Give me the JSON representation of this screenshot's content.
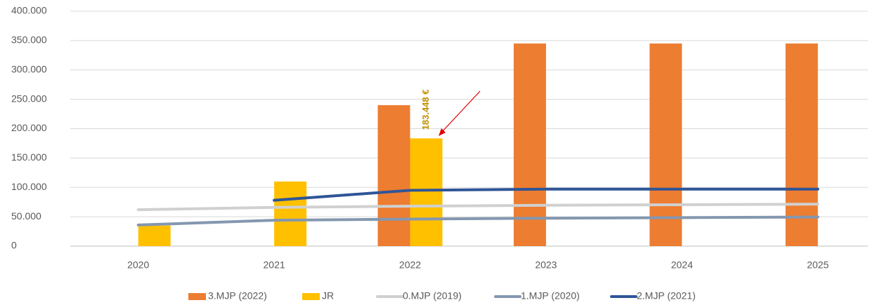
{
  "chart_data": {
    "type": "bar",
    "categories": [
      "2020",
      "2021",
      "2022",
      "2023",
      "2024",
      "2025"
    ],
    "series": [
      {
        "name": "3.MJP (2022)",
        "type": "bar",
        "color": "#ed7d31",
        "values": [
          null,
          null,
          240000,
          345000,
          345000,
          345000
        ]
      },
      {
        "name": "JR",
        "type": "bar",
        "color": "#ffc000",
        "values": [
          35000,
          110000,
          183448,
          null,
          null,
          null
        ],
        "value_labels": [
          null,
          null,
          "183.448 €",
          null,
          null,
          null
        ]
      },
      {
        "name": "0.MJP (2019)",
        "type": "line",
        "color": "#d0d0d0",
        "values": [
          62000,
          66000,
          68000,
          69500,
          70500,
          71500
        ]
      },
      {
        "name": "1.MJP (2020)",
        "type": "line",
        "color": "#8497b0",
        "values": [
          36000,
          44000,
          46000,
          47500,
          48500,
          49500
        ]
      },
      {
        "name": "2.MJP (2021)",
        "type": "line",
        "color": "#2f5597",
        "values": [
          null,
          78000,
          95000,
          97000,
          97000,
          97000
        ]
      }
    ],
    "ylim": [
      0,
      400000
    ],
    "yticks": [
      0,
      {
        "value": 50000,
        "label": "50.000"
      },
      {
        "value": 100000,
        "label": "100.000"
      },
      {
        "value": 150000,
        "label": "150.000"
      },
      {
        "value": 200000,
        "label": "200.000"
      },
      {
        "value": 250000,
        "label": "250.000"
      },
      {
        "value": 300000,
        "label": "300.000"
      },
      {
        "value": 350000,
        "label": "350.000"
      },
      {
        "value": 400000,
        "label": "400.000"
      }
    ],
    "grid": true,
    "legend": "bottom"
  }
}
